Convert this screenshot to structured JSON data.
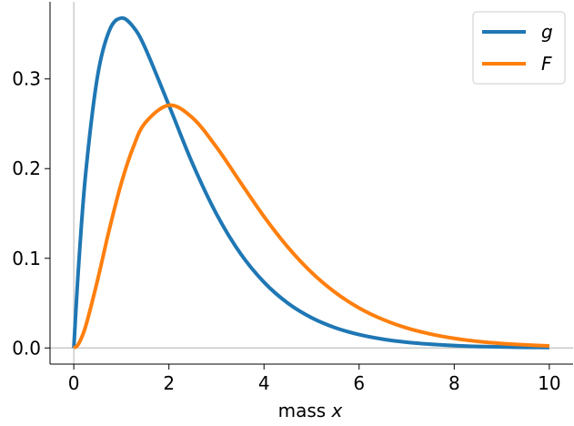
{
  "chart_data": {
    "type": "line",
    "title": "",
    "xlabel_prefix": "mass ",
    "xlabel_var": "x",
    "ylabel": "",
    "xlim": [
      -0.5,
      10.5
    ],
    "ylim": [
      -0.018,
      0.386
    ],
    "x_ticks": [
      0,
      2,
      4,
      6,
      8,
      10
    ],
    "x_tick_labels": [
      "0",
      "2",
      "4",
      "6",
      "8",
      "10"
    ],
    "y_ticks": [
      0.0,
      0.1,
      0.2,
      0.3
    ],
    "y_tick_labels": [
      "0.0",
      "0.1",
      "0.2",
      "0.3"
    ],
    "reference_lines": {
      "x": 0,
      "y": 0,
      "color": "#bfbfbf"
    },
    "grid": false,
    "legend_position": "top-right",
    "x": [
      0,
      0.1,
      0.25,
      0.5,
      0.75,
      1,
      1.25,
      1.5,
      2,
      2.5,
      3,
      3.5,
      4,
      4.5,
      5,
      5.5,
      6,
      6.5,
      7,
      7.5,
      8,
      8.5,
      9,
      9.5,
      10
    ],
    "series": [
      {
        "name": "g",
        "color": "#1f77b4",
        "values": [
          0.0,
          0.0905,
          0.1947,
          0.3033,
          0.3543,
          0.3679,
          0.3581,
          0.3347,
          0.2707,
          0.2052,
          0.1494,
          0.1057,
          0.0733,
          0.05,
          0.0337,
          0.0225,
          0.0149,
          0.0098,
          0.0064,
          0.0042,
          0.0027,
          0.0017,
          0.0011,
          0.0007,
          0.0005
        ]
      },
      {
        "name": "F",
        "color": "#ff7f0e",
        "values": [
          0.0,
          0.0045,
          0.0243,
          0.0758,
          0.1329,
          0.1839,
          0.2238,
          0.251,
          0.2707,
          0.2565,
          0.224,
          0.185,
          0.1465,
          0.1125,
          0.0842,
          0.0618,
          0.0446,
          0.0318,
          0.0223,
          0.0156,
          0.0107,
          0.0073,
          0.005,
          0.0034,
          0.0023
        ]
      }
    ]
  }
}
